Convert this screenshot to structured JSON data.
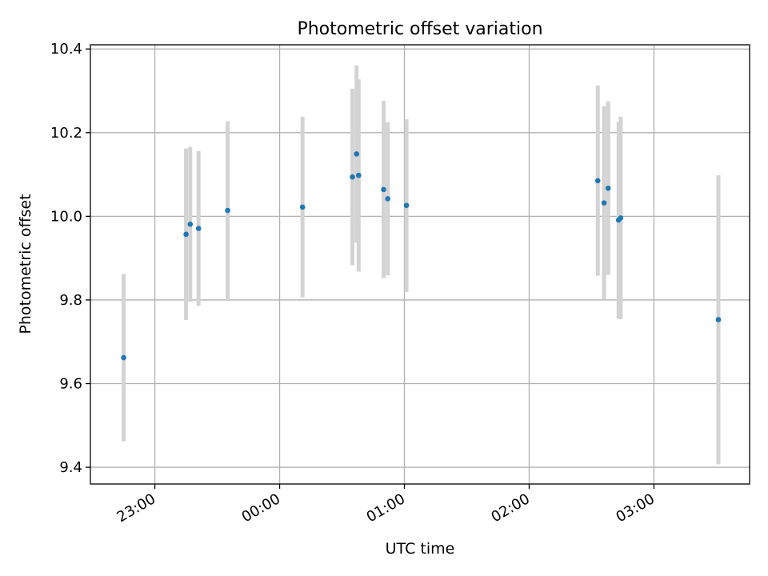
{
  "chart_data": {
    "type": "scatter",
    "title": "Photometric offset variation",
    "xlabel": "UTC time",
    "ylabel": "Photometric offset",
    "x_axis": {
      "kind": "time",
      "range": [
        "22:29",
        "03:46"
      ],
      "ticks": [
        "23:00",
        "00:00",
        "01:00",
        "02:00",
        "03:00"
      ]
    },
    "y_axis": {
      "range": [
        9.36,
        10.41
      ],
      "ticks": [
        "9.4",
        "9.6",
        "9.8",
        "10.0",
        "10.2",
        "10.4"
      ]
    },
    "grid": true,
    "colors": {
      "marker": "#1f77b4",
      "errorbar": "#d3d3d3",
      "grid": "#b0b0b0"
    },
    "points": [
      {
        "t": "22:45",
        "y": 9.662,
        "lo": 9.462,
        "hi": 9.862
      },
      {
        "t": "23:15",
        "y": 9.957,
        "lo": 9.752,
        "hi": 10.162
      },
      {
        "t": "23:17",
        "y": 9.981,
        "lo": 9.796,
        "hi": 10.166
      },
      {
        "t": "23:21",
        "y": 9.971,
        "lo": 9.786,
        "hi": 10.156
      },
      {
        "t": "23:35",
        "y": 10.014,
        "lo": 9.8,
        "hi": 10.227
      },
      {
        "t": "00:11",
        "y": 10.022,
        "lo": 9.806,
        "hi": 10.238
      },
      {
        "t": "00:35",
        "y": 10.094,
        "lo": 9.883,
        "hi": 10.305
      },
      {
        "t": "00:37",
        "y": 10.149,
        "lo": 9.937,
        "hi": 10.361
      },
      {
        "t": "00:38",
        "y": 10.098,
        "lo": 9.868,
        "hi": 10.327
      },
      {
        "t": "00:50",
        "y": 10.064,
        "lo": 9.852,
        "hi": 10.276
      },
      {
        "t": "00:52",
        "y": 10.042,
        "lo": 9.859,
        "hi": 10.225
      },
      {
        "t": "01:01",
        "y": 10.026,
        "lo": 9.819,
        "hi": 10.232
      },
      {
        "t": "02:33",
        "y": 10.085,
        "lo": 9.858,
        "hi": 10.313
      },
      {
        "t": "02:36",
        "y": 10.032,
        "lo": 9.802,
        "hi": 10.263
      },
      {
        "t": "02:38",
        "y": 10.067,
        "lo": 9.86,
        "hi": 10.275
      },
      {
        "t": "02:43",
        "y": 9.991,
        "lo": 9.756,
        "hi": 10.226
      },
      {
        "t": "02:44",
        "y": 9.996,
        "lo": 9.754,
        "hi": 10.238
      },
      {
        "t": "03:31",
        "y": 9.753,
        "lo": 9.407,
        "hi": 10.098
      }
    ]
  }
}
